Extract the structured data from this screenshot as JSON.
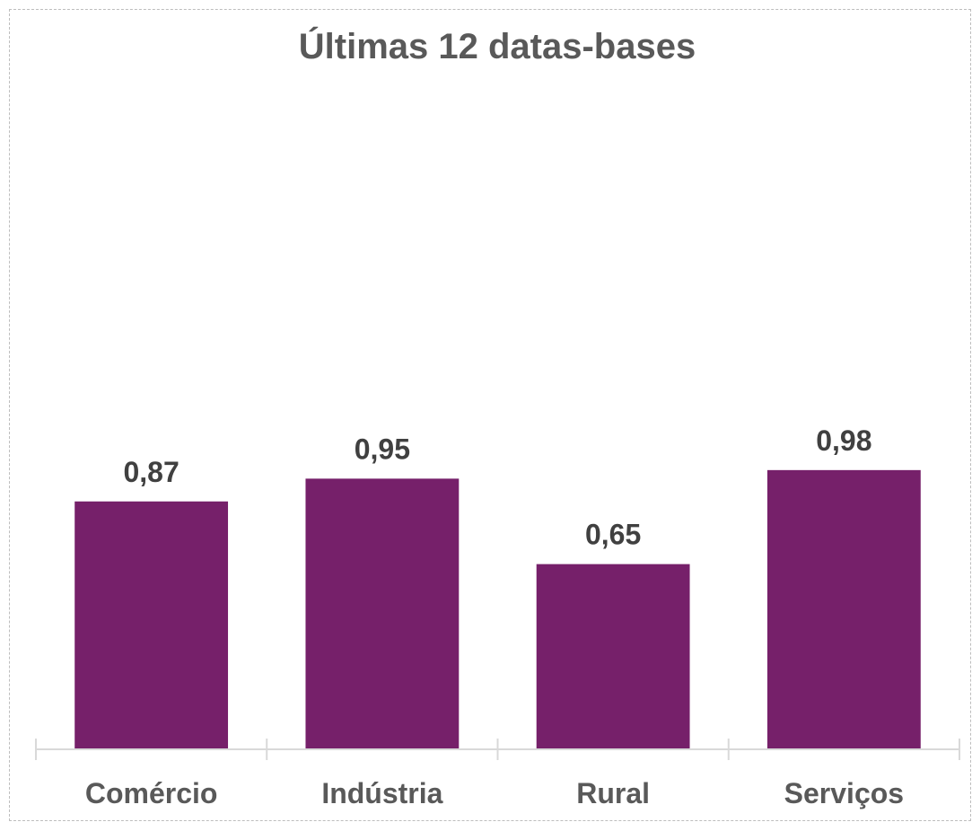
{
  "chart_data": {
    "type": "bar",
    "title": "Últimas 12 datas-bases",
    "categories": [
      "Comércio",
      "Indústria",
      "Rural",
      "Serviços"
    ],
    "values": [
      0.87,
      0.95,
      0.65,
      0.98
    ],
    "value_labels": [
      "0,87",
      "0,95",
      "0,65",
      "0,98"
    ],
    "xlabel": "",
    "ylabel": "",
    "ylim": [
      0,
      2.6
    ],
    "grid": false,
    "legend": "none",
    "bar_color": "#76206A",
    "axis_color": "#d9d9d9"
  }
}
